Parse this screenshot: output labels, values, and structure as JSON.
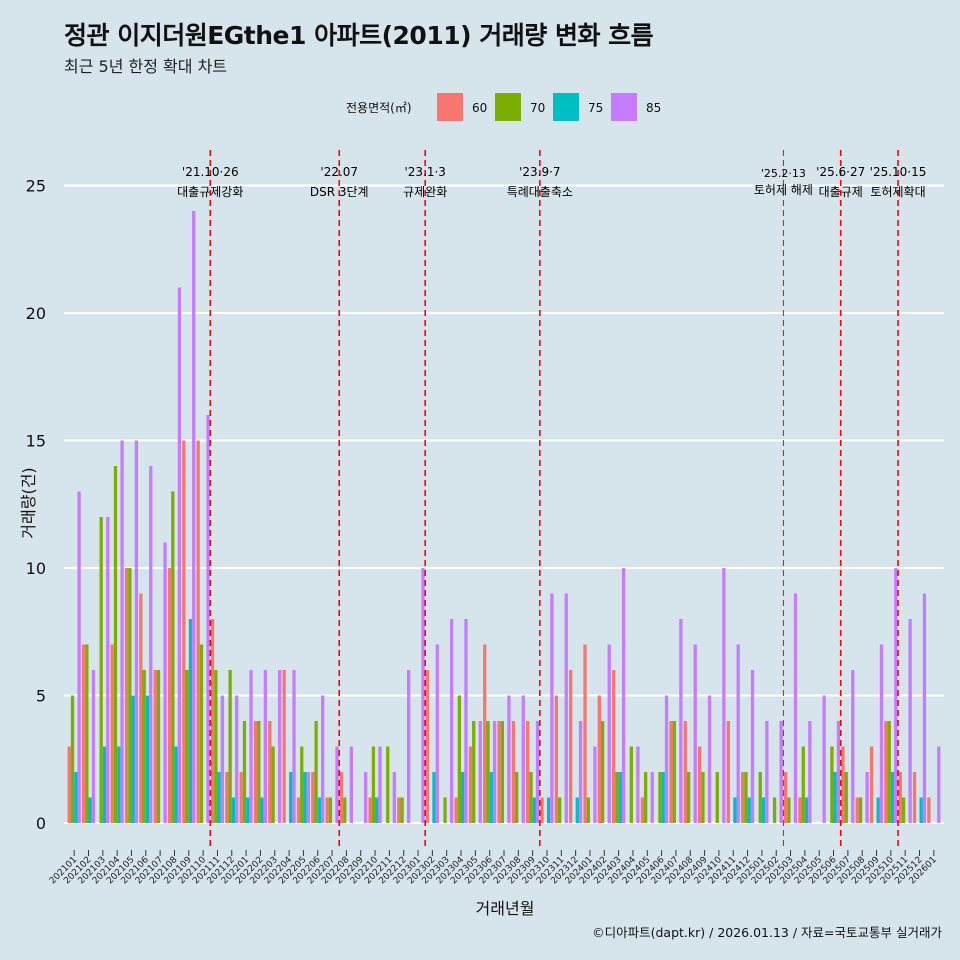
{
  "title": "정관 이지더원EGthe1 아파트(2011) 거래량 변화 흐름",
  "subtitle": "최근 5년 한정 확대 차트",
  "caption": "©디아파트(dapt.kr) / 2026.01.13 / 자료=국토교통부 실거래가",
  "chart_data": {
    "type": "bar",
    "title": "정관 이지더원EGthe1 아파트(2011) 거래량 변화 흐름",
    "xlabel": "거래년월",
    "ylabel": "거래량(건)",
    "ylim": [
      0,
      26
    ],
    "yticks": [
      0,
      5,
      10,
      15,
      20,
      25
    ],
    "grid": true,
    "legend": {
      "title": "전용면적(㎡)",
      "position": "top"
    },
    "colors": {
      "60": "#f8766d",
      "70": "#7cae00",
      "75": "#00bfc4",
      "85": "#c77cff"
    },
    "x": [
      "202101",
      "202102",
      "202103",
      "202104",
      "202105",
      "202106",
      "202107",
      "202108",
      "202109",
      "202110",
      "202111",
      "202112",
      "202201",
      "202202",
      "202203",
      "202204",
      "202205",
      "202206",
      "202207",
      "202208",
      "202209",
      "202210",
      "202211",
      "202212",
      "202301",
      "202302",
      "202303",
      "202304",
      "202305",
      "202306",
      "202307",
      "202308",
      "202309",
      "202310",
      "202311",
      "202312",
      "202401",
      "202402",
      "202403",
      "202404",
      "202405",
      "202406",
      "202407",
      "202408",
      "202409",
      "202410",
      "202411",
      "202412",
      "202501",
      "202502",
      "202503",
      "202504",
      "202505",
      "202506",
      "202507",
      "202508",
      "202509",
      "202510",
      "202511",
      "202512",
      "202601"
    ],
    "series": [
      {
        "name": "60",
        "values": [
          3,
          7,
          0,
          7,
          10,
          9,
          6,
          10,
          15,
          15,
          8,
          2,
          2,
          4,
          4,
          6,
          1,
          2,
          1,
          2,
          0,
          1,
          0,
          1,
          0,
          6,
          0,
          1,
          3,
          7,
          4,
          4,
          4,
          1,
          5,
          6,
          7,
          5,
          6,
          0,
          1,
          0,
          4,
          4,
          3,
          0,
          4,
          2,
          0,
          0,
          2,
          1,
          0,
          0,
          3,
          1,
          3,
          4,
          2,
          2,
          1
        ]
      },
      {
        "name": "70",
        "values": [
          5,
          7,
          12,
          14,
          10,
          6,
          6,
          13,
          6,
          7,
          6,
          6,
          4,
          4,
          3,
          0,
          3,
          4,
          1,
          1,
          0,
          3,
          3,
          1,
          0,
          0,
          1,
          5,
          4,
          4,
          4,
          2,
          2,
          0,
          1,
          0,
          1,
          4,
          2,
          3,
          2,
          2,
          4,
          2,
          2,
          2,
          0,
          2,
          2,
          1,
          1,
          3,
          0,
          3,
          2,
          1,
          0,
          4,
          1,
          0,
          0
        ]
      },
      {
        "name": "75",
        "values": [
          2,
          1,
          3,
          3,
          5,
          5,
          0,
          3,
          8,
          0,
          2,
          1,
          1,
          1,
          0,
          2,
          2,
          1,
          0,
          0,
          0,
          1,
          0,
          0,
          0,
          2,
          0,
          2,
          0,
          2,
          0,
          0,
          1,
          1,
          0,
          1,
          0,
          0,
          2,
          0,
          0,
          2,
          0,
          0,
          0,
          0,
          1,
          1,
          1,
          0,
          0,
          1,
          0,
          2,
          0,
          0,
          1,
          2,
          0,
          1,
          0
        ]
      },
      {
        "name": "85",
        "values": [
          13,
          6,
          12,
          15,
          15,
          14,
          11,
          21,
          24,
          16,
          5,
          5,
          6,
          6,
          6,
          6,
          2,
          5,
          3,
          3,
          2,
          3,
          2,
          6,
          10,
          7,
          8,
          8,
          4,
          4,
          5,
          5,
          4,
          9,
          9,
          4,
          3,
          7,
          10,
          3,
          2,
          5,
          8,
          7,
          5,
          10,
          7,
          6,
          4,
          4,
          9,
          4,
          5,
          4,
          6,
          2,
          7,
          10,
          8,
          9,
          3
        ]
      }
    ],
    "annotations": [
      {
        "x": "202110",
        "date": "'21.10·26",
        "label": "대출규제강화"
      },
      {
        "x": "202207",
        "date": "'22.07",
        "label": "DSR 3단계"
      },
      {
        "x": "202301",
        "date": "'23.1·3",
        "label": "규제완화"
      },
      {
        "x": "202309",
        "date": "'23.9·7",
        "label": "특례대출축소"
      },
      {
        "x": "202502",
        "date": "'25.2·13",
        "label": "토허제 해제"
      },
      {
        "x": "202506",
        "date": "'25.6·27",
        "label": "대출규제"
      },
      {
        "x": "202510",
        "date": "'25.10·15",
        "label": "토허제확대"
      }
    ]
  }
}
